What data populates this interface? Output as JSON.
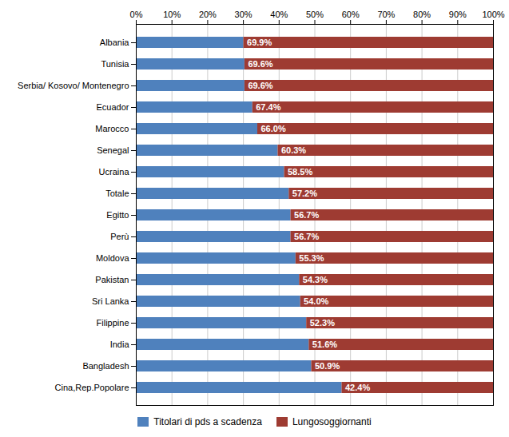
{
  "chart_data": {
    "type": "bar",
    "orientation": "horizontal",
    "stacked": true,
    "categories": [
      "Albania",
      "Tunisia",
      "Serbia/ Kosovo/ Montenegro",
      "Ecuador",
      "Marocco",
      "Senegal",
      "Ucraina",
      "Totale",
      "Egitto",
      "Perù",
      "Moldova",
      "Pakistan",
      "Sri Lanka",
      "Filippine",
      "India",
      "Bangladesh",
      "Cina,Rep.Popolare"
    ],
    "series": [
      {
        "name": "Titolari di pds a scadenza",
        "color": "#4F81BD",
        "values": [
          30.1,
          30.4,
          30.4,
          32.6,
          34.0,
          39.7,
          41.5,
          42.8,
          43.3,
          43.3,
          44.7,
          45.7,
          46.0,
          47.7,
          48.4,
          49.1,
          57.6
        ]
      },
      {
        "name": "Lungosoggiornanti",
        "color": "#9E3B32",
        "values": [
          69.9,
          69.6,
          69.6,
          67.4,
          66.0,
          60.3,
          58.5,
          57.2,
          56.7,
          56.7,
          55.3,
          54.3,
          54.0,
          52.3,
          51.6,
          50.9,
          42.4
        ],
        "value_labels": [
          "69.9%",
          "69.6%",
          "69.6%",
          "67.4%",
          "66.0%",
          "60.3%",
          "58.5%",
          "57.2%",
          "56.7%",
          "56.7%",
          "55.3%",
          "54.3%",
          "54.0%",
          "52.3%",
          "51.6%",
          "50.9%",
          "42.4%"
        ]
      }
    ],
    "data_labels": true,
    "xlim": [
      0,
      100
    ],
    "xticks": [
      {
        "value": 0,
        "label": "0%"
      },
      {
        "value": 10,
        "label": "10%"
      },
      {
        "value": 20,
        "label": "20%"
      },
      {
        "value": 30,
        "label": "30%"
      },
      {
        "value": 40,
        "label": "40%"
      },
      {
        "value": 50,
        "label": "50%"
      },
      {
        "value": 60,
        "label": "60%"
      },
      {
        "value": 70,
        "label": "70%"
      },
      {
        "value": 80,
        "label": "80%"
      },
      {
        "value": 90,
        "label": "90%"
      },
      {
        "value": 100,
        "label": "100%"
      }
    ],
    "grid": true,
    "legend": "bottom"
  }
}
